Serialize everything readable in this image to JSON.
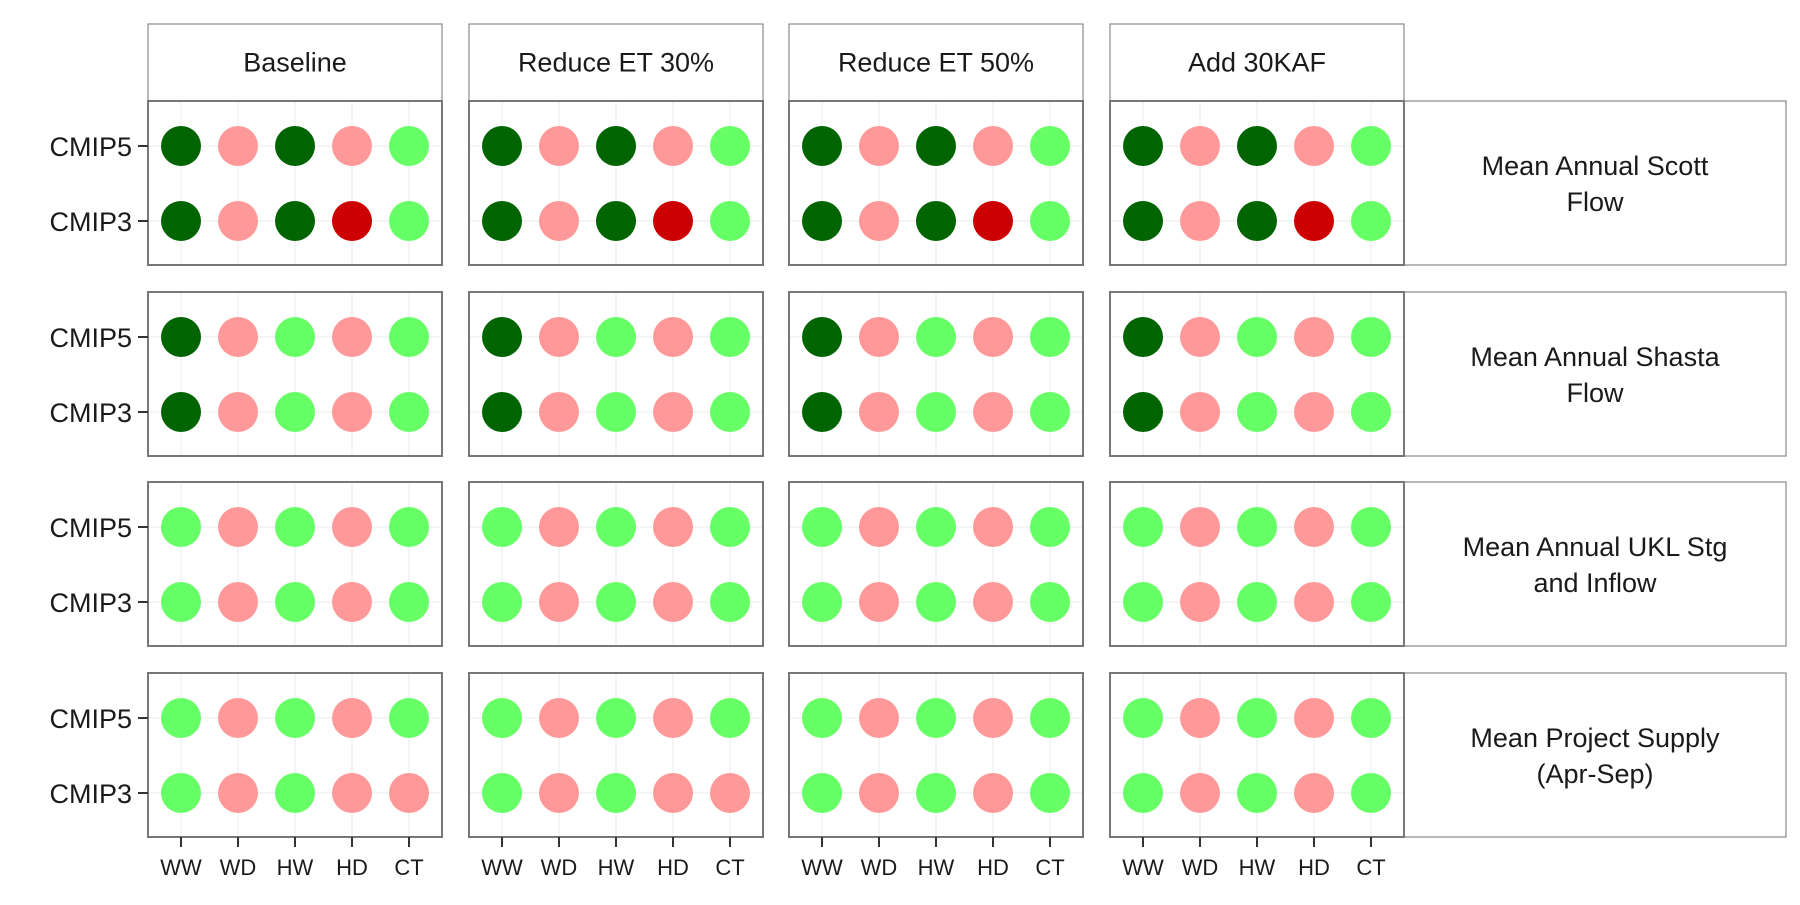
{
  "chart_data": {
    "type": "scatter",
    "col_facets": [
      "Baseline",
      "Reduce ET 30%",
      "Reduce ET 50%",
      "Add 30KAF"
    ],
    "row_facets": [
      "Mean Annual Scott Flow",
      "Mean Annual Shasta Flow",
      "Mean Annual UKL Stg and Inflow",
      "Mean Project Supply (Apr-Sep)"
    ],
    "x_categories": [
      "WW",
      "WD",
      "HW",
      "HD",
      "CT"
    ],
    "y_categories": [
      "CMIP5",
      "CMIP3"
    ],
    "legend": "none",
    "grid": true,
    "colors": {
      "dark_green": "#006400",
      "light_green": "#66ff66",
      "light_red": "#ff9999",
      "red": "#cc0000",
      "panel_border": "#777777",
      "strip_border": "#888888",
      "grid": "#ebebeb",
      "text": "#1a1a1a"
    },
    "cells": [
      [
        {
          "CMIP5": [
            "dark_green",
            "light_red",
            "dark_green",
            "light_red",
            "light_green"
          ],
          "CMIP3": [
            "dark_green",
            "light_red",
            "dark_green",
            "red",
            "light_green"
          ]
        },
        {
          "CMIP5": [
            "dark_green",
            "light_red",
            "dark_green",
            "light_red",
            "light_green"
          ],
          "CMIP3": [
            "dark_green",
            "light_red",
            "dark_green",
            "red",
            "light_green"
          ]
        },
        {
          "CMIP5": [
            "dark_green",
            "light_red",
            "dark_green",
            "light_red",
            "light_green"
          ],
          "CMIP3": [
            "dark_green",
            "light_red",
            "dark_green",
            "red",
            "light_green"
          ]
        },
        {
          "CMIP5": [
            "dark_green",
            "light_red",
            "dark_green",
            "light_red",
            "light_green"
          ],
          "CMIP3": [
            "dark_green",
            "light_red",
            "dark_green",
            "red",
            "light_green"
          ]
        }
      ],
      [
        {
          "CMIP5": [
            "dark_green",
            "light_red",
            "light_green",
            "light_red",
            "light_green"
          ],
          "CMIP3": [
            "dark_green",
            "light_red",
            "light_green",
            "light_red",
            "light_green"
          ]
        },
        {
          "CMIP5": [
            "dark_green",
            "light_red",
            "light_green",
            "light_red",
            "light_green"
          ],
          "CMIP3": [
            "dark_green",
            "light_red",
            "light_green",
            "light_red",
            "light_green"
          ]
        },
        {
          "CMIP5": [
            "dark_green",
            "light_red",
            "light_green",
            "light_red",
            "light_green"
          ],
          "CMIP3": [
            "dark_green",
            "light_red",
            "light_green",
            "light_red",
            "light_green"
          ]
        },
        {
          "CMIP5": [
            "dark_green",
            "light_red",
            "light_green",
            "light_red",
            "light_green"
          ],
          "CMIP3": [
            "dark_green",
            "light_red",
            "light_green",
            "light_red",
            "light_green"
          ]
        }
      ],
      [
        {
          "CMIP5": [
            "light_green",
            "light_red",
            "light_green",
            "light_red",
            "light_green"
          ],
          "CMIP3": [
            "light_green",
            "light_red",
            "light_green",
            "light_red",
            "light_green"
          ]
        },
        {
          "CMIP5": [
            "light_green",
            "light_red",
            "light_green",
            "light_red",
            "light_green"
          ],
          "CMIP3": [
            "light_green",
            "light_red",
            "light_green",
            "light_red",
            "light_green"
          ]
        },
        {
          "CMIP5": [
            "light_green",
            "light_red",
            "light_green",
            "light_red",
            "light_green"
          ],
          "CMIP3": [
            "light_green",
            "light_red",
            "light_green",
            "light_red",
            "light_green"
          ]
        },
        {
          "CMIP5": [
            "light_green",
            "light_red",
            "light_green",
            "light_red",
            "light_green"
          ],
          "CMIP3": [
            "light_green",
            "light_red",
            "light_green",
            "light_red",
            "light_green"
          ]
        }
      ],
      [
        {
          "CMIP5": [
            "light_green",
            "light_red",
            "light_green",
            "light_red",
            "light_green"
          ],
          "CMIP3": [
            "light_green",
            "light_red",
            "light_green",
            "light_red",
            "light_red"
          ]
        },
        {
          "CMIP5": [
            "light_green",
            "light_red",
            "light_green",
            "light_red",
            "light_green"
          ],
          "CMIP3": [
            "light_green",
            "light_red",
            "light_green",
            "light_red",
            "light_red"
          ]
        },
        {
          "CMIP5": [
            "light_green",
            "light_red",
            "light_green",
            "light_red",
            "light_green"
          ],
          "CMIP3": [
            "light_green",
            "light_red",
            "light_green",
            "light_red",
            "light_green"
          ]
        },
        {
          "CMIP5": [
            "light_green",
            "light_red",
            "light_green",
            "light_red",
            "light_green"
          ],
          "CMIP3": [
            "light_green",
            "light_red",
            "light_green",
            "light_red",
            "light_green"
          ]
        }
      ]
    ]
  }
}
